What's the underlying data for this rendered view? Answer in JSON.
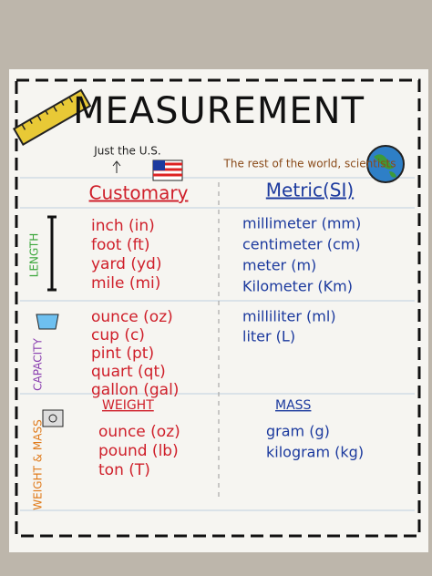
{
  "title": "MEASUREMENT",
  "customary_note": "Just the U.S.",
  "metric_note": "The rest of the world, scientists",
  "columns": {
    "customary": "Customary",
    "metric": "Metric(SI)"
  },
  "sections": [
    {
      "label": "LENGTH",
      "customary": [
        "inch (in)",
        "foot (ft)",
        "yard (yd)",
        "mile (mi)"
      ],
      "metric": [
        "millimeter (mm)",
        "centimeter (cm)",
        "meter (m)",
        "Kilometer (Km)"
      ]
    },
    {
      "label": "CAPACITY",
      "customary": [
        "ounce (oz)",
        "cup (c)",
        "pint (pt)",
        "quart (qt)",
        "gallon (gal)"
      ],
      "metric": [
        "milliliter (ml)",
        "liter (L)"
      ]
    },
    {
      "label": "WEIGHT & MASS",
      "customary_heading": "WEIGHT",
      "metric_heading": "MASS",
      "customary": [
        "ounce (oz)",
        "pound (lb)",
        "ton (T)"
      ],
      "metric": [
        "gram (g)",
        "kilogram (kg)"
      ]
    }
  ]
}
